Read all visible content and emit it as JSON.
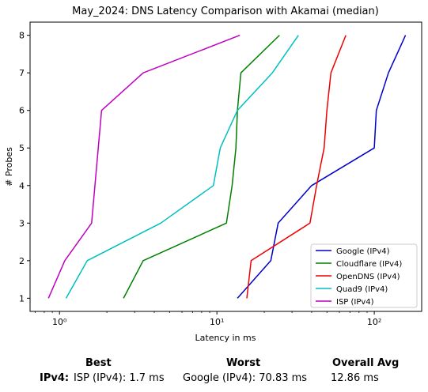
{
  "chart_data": {
    "type": "line",
    "title": "May_2024: DNS Latency Comparison with Akamai (median)",
    "xlabel": "Latency in ms",
    "ylabel": "# Probes",
    "xscale": "log",
    "xlim": [
      0.65,
      200
    ],
    "ylim": [
      0.65,
      8.35
    ],
    "x_ticks": [
      1,
      10,
      100
    ],
    "x_tick_labels": [
      "10⁰",
      "10¹",
      "10²"
    ],
    "y_ticks": [
      1,
      2,
      3,
      4,
      5,
      6,
      7,
      8
    ],
    "legend_position": "bottom-right",
    "grid": false,
    "series": [
      {
        "name": "Google (IPv4)",
        "color": "#0000cc",
        "points": [
          [
            13.5,
            1
          ],
          [
            22,
            2
          ],
          [
            24.5,
            3
          ],
          [
            40,
            4
          ],
          [
            100,
            5
          ],
          [
            103,
            6
          ],
          [
            123,
            7
          ],
          [
            158,
            8
          ]
        ]
      },
      {
        "name": "Cloudflare (IPv4)",
        "color": "#008000",
        "points": [
          [
            2.55,
            1
          ],
          [
            3.4,
            2
          ],
          [
            11.5,
            3
          ],
          [
            12.5,
            4
          ],
          [
            13.2,
            5
          ],
          [
            13.5,
            6
          ],
          [
            14.2,
            7
          ],
          [
            25,
            8
          ]
        ]
      },
      {
        "name": "OpenDNS (IPv4)",
        "color": "#ee0000",
        "points": [
          [
            15.5,
            1
          ],
          [
            16.5,
            2
          ],
          [
            39,
            3
          ],
          [
            43,
            4
          ],
          [
            48,
            5
          ],
          [
            50,
            6
          ],
          [
            53,
            7
          ],
          [
            66,
            8
          ]
        ]
      },
      {
        "name": "Quad9 (IPv4)",
        "color": "#00bfbf",
        "points": [
          [
            1.1,
            1
          ],
          [
            1.5,
            2
          ],
          [
            4.4,
            3
          ],
          [
            9.5,
            4
          ],
          [
            10.5,
            5
          ],
          [
            13.5,
            6
          ],
          [
            22.5,
            7
          ],
          [
            33,
            8
          ]
        ]
      },
      {
        "name": "ISP (IPv4)",
        "color": "#bf00bf",
        "points": [
          [
            0.85,
            1
          ],
          [
            1.08,
            2
          ],
          [
            1.6,
            3
          ],
          [
            1.85,
            6
          ],
          [
            3.4,
            7
          ],
          [
            14,
            8
          ]
        ]
      }
    ]
  },
  "summary": {
    "best_header": "Best",
    "worst_header": "Worst",
    "avg_header": "Overall Avg",
    "row_label": "IPv4:",
    "best_value": "ISP (IPv4): 1.7 ms",
    "worst_value": "Google (IPv4): 70.83 ms",
    "avg_value": "12.86 ms"
  }
}
